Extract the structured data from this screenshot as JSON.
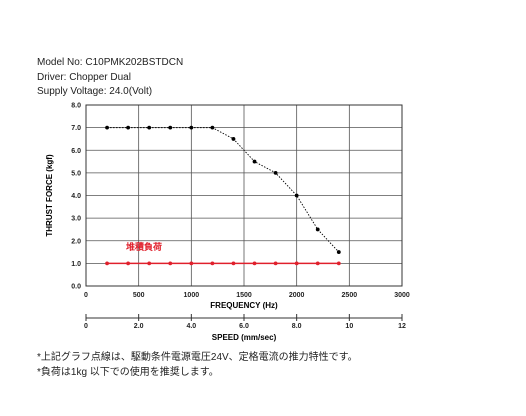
{
  "header": {
    "model": "Model No: C10PMK202BSTDCN",
    "driver": "Driver: Chopper Dual",
    "voltage": "Supply Voltage: 24.0(Volt)"
  },
  "chart_data": {
    "type": "line",
    "ylabel": "THRUST FORCE (kgf)",
    "xlabel": "FREQUENCY (Hz)",
    "xlabel2": "SPEED (mm/sec)",
    "xlim": [
      0,
      3000
    ],
    "ylim": [
      0,
      8
    ],
    "x_ticks": [
      "0",
      "500",
      "1000",
      "1500",
      "2000",
      "2500",
      "3000"
    ],
    "y_ticks": [
      "0.0",
      "1.0",
      "2.0",
      "3.0",
      "4.0",
      "5.0",
      "6.0",
      "7.0",
      "8.0"
    ],
    "speed_lim": [
      0,
      12
    ],
    "speed_ticks": [
      "0",
      "2.0",
      "4.0",
      "6.0",
      "8.0",
      "10",
      "12"
    ],
    "series": [
      {
        "color": "#000000",
        "style": "dotted",
        "x": [
          200,
          400,
          600,
          800,
          1000,
          1200,
          1400,
          1600,
          1800,
          2000,
          2200,
          2400
        ],
        "y": [
          7.0,
          7.0,
          7.0,
          7.0,
          7.0,
          7.0,
          6.5,
          5.5,
          5.0,
          4.0,
          2.5,
          1.5
        ]
      },
      {
        "color": "#e0202c",
        "style": "solid",
        "x": [
          200,
          400,
          600,
          800,
          1000,
          1200,
          1400,
          1600,
          1800,
          2000,
          2200,
          2400
        ],
        "y": [
          1.0,
          1.0,
          1.0,
          1.0,
          1.0,
          1.0,
          1.0,
          1.0,
          1.0,
          1.0,
          1.0,
          1.0
        ]
      }
    ],
    "annotation": "堆積負荷",
    "annotation_color": "#e0202c"
  },
  "notes": {
    "line1": "*上記グラフ点線は、駆動条件電源電圧24V、定格電流の推力特性です。",
    "line2": "*負荷は1kg 以下での使用を推奨します。"
  }
}
